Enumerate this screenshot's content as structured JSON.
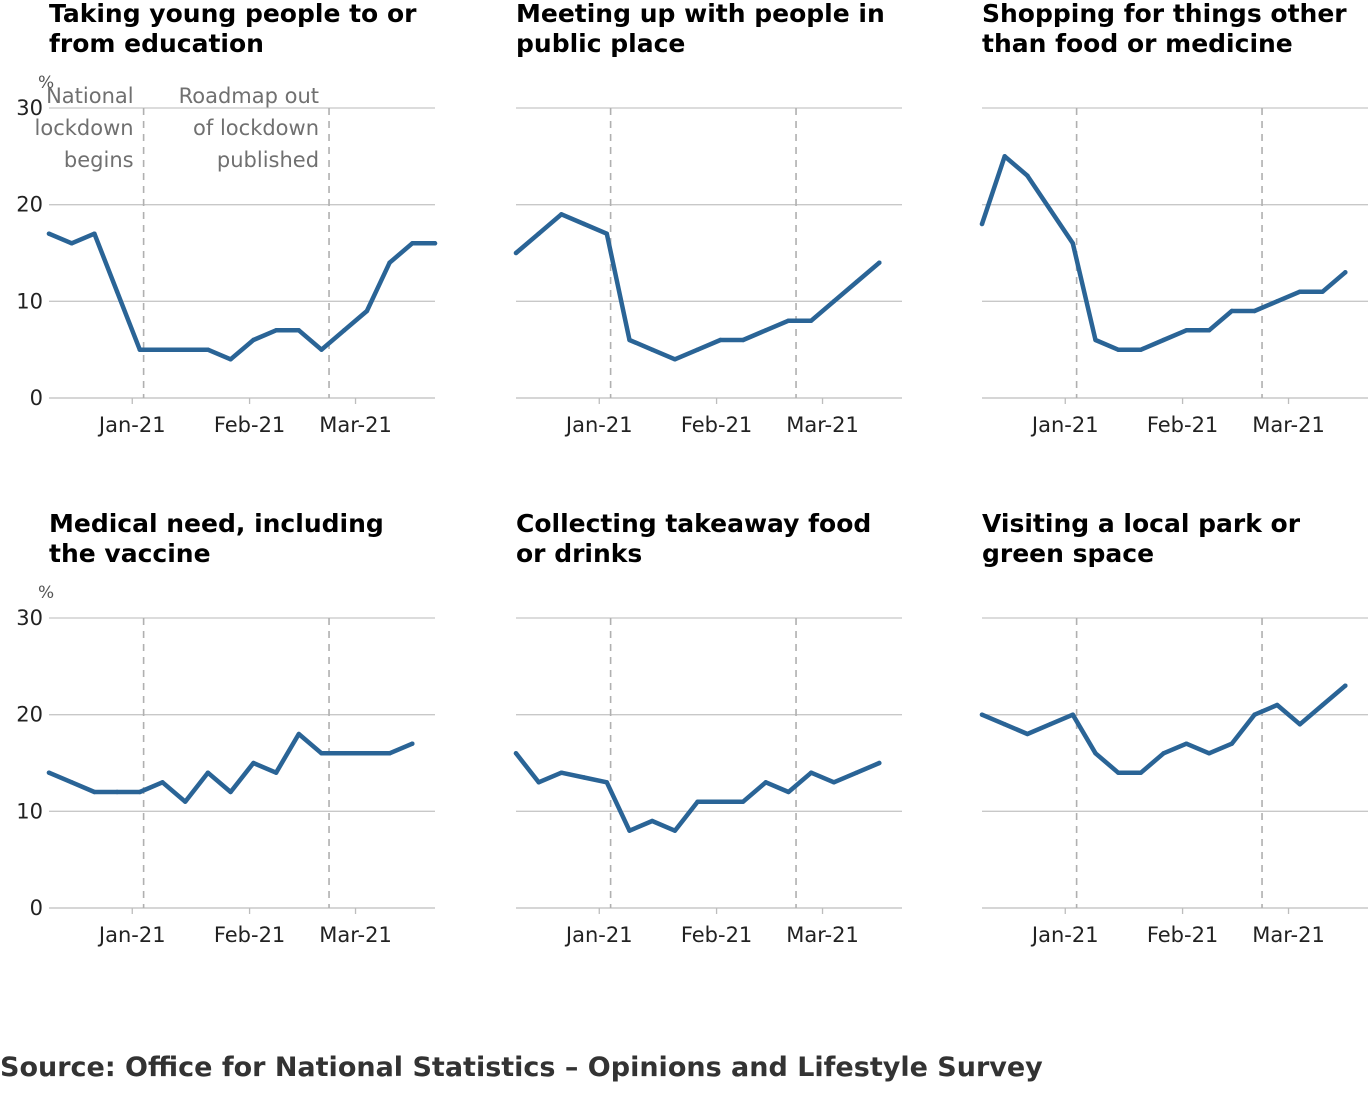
{
  "source": "Source: Office for National Statistics – Opinions and Lifestyle Survey",
  "colors": {
    "line": "#2a6496"
  },
  "chart_data": [
    {
      "type": "line",
      "title": [
        "Taking young people to or",
        "from education"
      ],
      "unit_label": "%",
      "ylim": [
        0,
        30
      ],
      "yticks": [
        0,
        10,
        20,
        30
      ],
      "xticks": [
        {
          "label": "Jan-21",
          "x": "2021-01-01"
        },
        {
          "label": "Feb-21",
          "x": "2021-02-01"
        },
        {
          "label": "Mar-21",
          "x": "2021-03-01"
        }
      ],
      "x": [
        "2020-12-10",
        "2020-12-16",
        "2020-12-22",
        "2020-12-28",
        "2021-01-03",
        "2021-01-09",
        "2021-01-15",
        "2021-01-21",
        "2021-01-27",
        "2021-02-02",
        "2021-02-08",
        "2021-02-14",
        "2021-02-20",
        "2021-02-26",
        "2021-03-04",
        "2021-03-10",
        "2021-03-16",
        "2021-03-22"
      ],
      "values": [
        17,
        16,
        17,
        11,
        5,
        5,
        5,
        5,
        4,
        6,
        7,
        7,
        5,
        7,
        9,
        14,
        16,
        16
      ],
      "annotations": [
        {
          "x": "2021-01-04",
          "lines": [
            "National",
            "lockdown",
            "begins"
          ]
        },
        {
          "x": "2021-02-22",
          "lines": [
            "Roadmap out",
            "of lockdown",
            "published"
          ]
        }
      ]
    },
    {
      "type": "line",
      "title": [
        "Meeting up with people in",
        "public place"
      ],
      "ylim": [
        0,
        30
      ],
      "yticks": [
        0,
        10,
        20,
        30
      ],
      "xticks": [
        {
          "label": "Jan-21",
          "x": "2021-01-01"
        },
        {
          "label": "Feb-21",
          "x": "2021-02-01"
        },
        {
          "label": "Mar-21",
          "x": "2021-03-01"
        }
      ],
      "x": [
        "2020-12-10",
        "2020-12-16",
        "2020-12-22",
        "2020-12-28",
        "2021-01-03",
        "2021-01-09",
        "2021-01-15",
        "2021-01-21",
        "2021-01-27",
        "2021-02-02",
        "2021-02-08",
        "2021-02-14",
        "2021-02-20",
        "2021-02-26",
        "2021-03-04",
        "2021-03-10",
        "2021-03-16",
        "2021-03-22"
      ],
      "values": [
        15,
        17,
        19,
        18,
        17,
        6,
        5,
        4,
        5,
        6,
        6,
        7,
        8,
        8,
        10,
        12,
        14,
        null
      ]
    },
    {
      "type": "line",
      "title": [
        "Shopping for things other",
        "than food or medicine"
      ],
      "ylim": [
        0,
        30
      ],
      "yticks": [
        0,
        10,
        20,
        30
      ],
      "xticks": [
        {
          "label": "Jan-21",
          "x": "2021-01-01"
        },
        {
          "label": "Feb-21",
          "x": "2021-02-01"
        },
        {
          "label": "Mar-21",
          "x": "2021-03-01"
        }
      ],
      "x": [
        "2020-12-10",
        "2020-12-16",
        "2020-12-22",
        "2020-12-28",
        "2021-01-03",
        "2021-01-09",
        "2021-01-15",
        "2021-01-21",
        "2021-01-27",
        "2021-02-02",
        "2021-02-08",
        "2021-02-14",
        "2021-02-20",
        "2021-02-26",
        "2021-03-04",
        "2021-03-10",
        "2021-03-16",
        "2021-03-22"
      ],
      "values": [
        18,
        25,
        23,
        19.5,
        16,
        6,
        5,
        5,
        6,
        7,
        7,
        9,
        9,
        10,
        11,
        11,
        13,
        null
      ]
    },
    {
      "type": "line",
      "title": [
        "Medical need, including",
        "the vaccine"
      ],
      "unit_label": "%",
      "ylim": [
        0,
        30
      ],
      "yticks": [
        0,
        10,
        20,
        30
      ],
      "xticks": [
        {
          "label": "Jan-21",
          "x": "2021-01-01"
        },
        {
          "label": "Feb-21",
          "x": "2021-02-01"
        },
        {
          "label": "Mar-21",
          "x": "2021-03-01"
        }
      ],
      "x": [
        "2020-12-10",
        "2020-12-16",
        "2020-12-22",
        "2020-12-28",
        "2021-01-03",
        "2021-01-09",
        "2021-01-15",
        "2021-01-21",
        "2021-01-27",
        "2021-02-02",
        "2021-02-08",
        "2021-02-14",
        "2021-02-20",
        "2021-02-26",
        "2021-03-04",
        "2021-03-10",
        "2021-03-16",
        "2021-03-22"
      ],
      "values": [
        14,
        13,
        12,
        12,
        12,
        13,
        11,
        14,
        12,
        15,
        14,
        18,
        16,
        16,
        16,
        16,
        17,
        null
      ]
    },
    {
      "type": "line",
      "title": [
        "Collecting takeaway food",
        "or drinks"
      ],
      "ylim": [
        0,
        30
      ],
      "yticks": [
        0,
        10,
        20,
        30
      ],
      "xticks": [
        {
          "label": "Jan-21",
          "x": "2021-01-01"
        },
        {
          "label": "Feb-21",
          "x": "2021-02-01"
        },
        {
          "label": "Mar-21",
          "x": "2021-03-01"
        }
      ],
      "x": [
        "2020-12-10",
        "2020-12-16",
        "2020-12-22",
        "2020-12-28",
        "2021-01-03",
        "2021-01-09",
        "2021-01-15",
        "2021-01-21",
        "2021-01-27",
        "2021-02-02",
        "2021-02-08",
        "2021-02-14",
        "2021-02-20",
        "2021-02-26",
        "2021-03-04",
        "2021-03-10",
        "2021-03-16",
        "2021-03-22"
      ],
      "values": [
        16,
        13,
        14,
        13.5,
        13,
        8,
        9,
        8,
        11,
        11,
        11,
        13,
        12,
        14,
        13,
        14,
        15,
        null
      ]
    },
    {
      "type": "line",
      "title": [
        "Visiting a local park or",
        "green space"
      ],
      "ylim": [
        0,
        30
      ],
      "yticks": [
        0,
        10,
        20,
        30
      ],
      "xticks": [
        {
          "label": "Jan-21",
          "x": "2021-01-01"
        },
        {
          "label": "Feb-21",
          "x": "2021-02-01"
        },
        {
          "label": "Mar-21",
          "x": "2021-03-01"
        }
      ],
      "x": [
        "2020-12-10",
        "2020-12-16",
        "2020-12-22",
        "2020-12-28",
        "2021-01-03",
        "2021-01-09",
        "2021-01-15",
        "2021-01-21",
        "2021-01-27",
        "2021-02-02",
        "2021-02-08",
        "2021-02-14",
        "2021-02-20",
        "2021-02-26",
        "2021-03-04",
        "2021-03-10",
        "2021-03-16",
        "2021-03-22"
      ],
      "values": [
        20,
        19,
        18,
        19,
        20,
        16,
        14,
        14,
        16,
        17,
        16,
        17,
        20,
        21,
        19,
        21,
        23,
        null
      ]
    }
  ]
}
